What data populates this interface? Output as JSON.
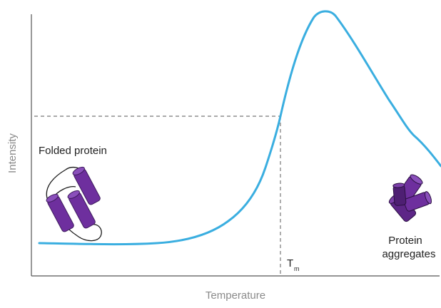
{
  "axes": {
    "x_label": "Temperature",
    "y_label": "Intensity"
  },
  "labels": {
    "folded": "Folded protein",
    "tm_main": "T",
    "tm_sub": "m",
    "aggregates_line1": "Protein",
    "aggregates_line2": "aggregates"
  },
  "colors": {
    "curve": "#3aaee0",
    "protein": "#6e2f9e",
    "protein_dark": "#3d1a5c",
    "axis": "#555555",
    "guide": "#777777",
    "axis_label": "#8a8a8a",
    "text": "#222222"
  },
  "icons": {
    "folded": "folded-protein-icon",
    "aggregate": "protein-aggregate-icon"
  }
}
